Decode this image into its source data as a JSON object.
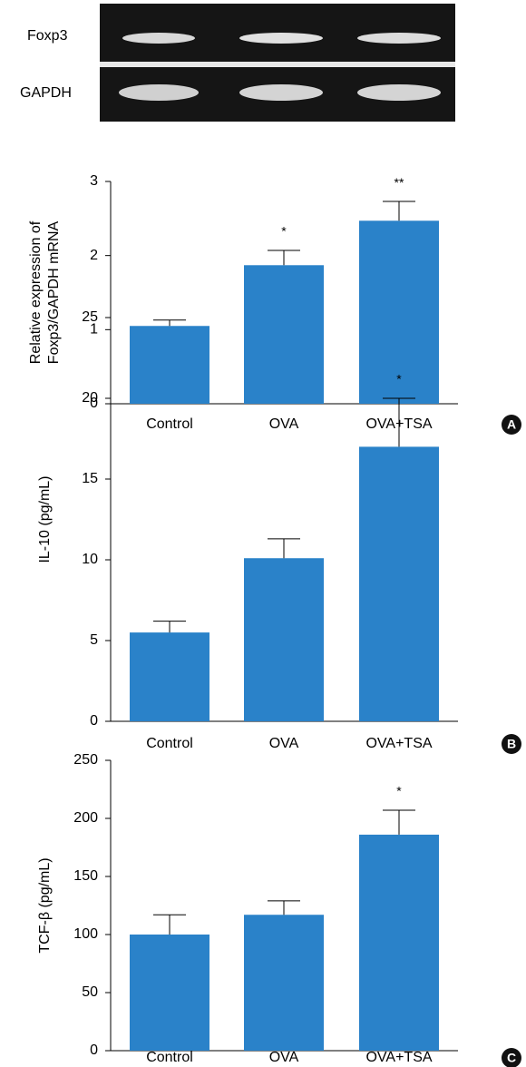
{
  "blot": {
    "labels": [
      "Foxp3",
      "GAPDH"
    ]
  },
  "chart_data": [
    {
      "type": "bar",
      "panel": "A",
      "ylabel": [
        "Relative expression of",
        "Foxp3/GAPDH mRNA"
      ],
      "categories": [
        "Control",
        "OVA",
        "OVA+TSA"
      ],
      "values": [
        1.05,
        1.87,
        2.47
      ],
      "errors": [
        0.08,
        0.2,
        0.26
      ],
      "annotations": [
        null,
        "*",
        "**"
      ],
      "color": "#2a82c9",
      "ylim": [
        0,
        3
      ],
      "yticks": [
        0,
        1,
        2,
        3
      ]
    },
    {
      "type": "bar",
      "panel": "B",
      "ylabel": [
        "IL-10 (pg/mL)"
      ],
      "categories": [
        "Control",
        "OVA",
        "OVA+TSA"
      ],
      "values": [
        5.5,
        10.1,
        17.0
      ],
      "errors": [
        0.7,
        1.2,
        3.0
      ],
      "annotations": [
        null,
        null,
        "*"
      ],
      "color": "#2a82c9",
      "ylim": [
        0,
        25
      ],
      "yticks": [
        0,
        5,
        10,
        15,
        20,
        25
      ]
    },
    {
      "type": "bar",
      "panel": "C",
      "ylabel": [
        "TCF-β (pg/mL)"
      ],
      "categories": [
        "Control",
        "OVA",
        "OVA+TSA"
      ],
      "values": [
        100,
        117,
        186
      ],
      "errors": [
        17,
        12,
        21
      ],
      "annotations": [
        null,
        null,
        "*"
      ],
      "color": "#2a82c9",
      "ylim": [
        0,
        250
      ],
      "yticks": [
        0,
        50,
        100,
        150,
        200,
        250
      ]
    }
  ]
}
